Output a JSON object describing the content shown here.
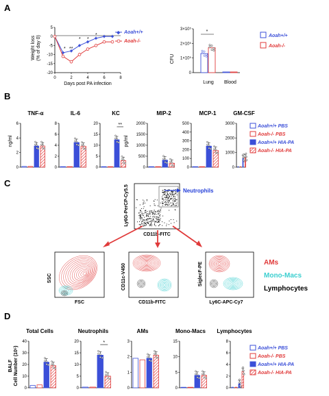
{
  "panels": {
    "A": {
      "letter": "A",
      "weight": {
        "ylabel_line1": "Weight loss",
        "ylabel_line2": "(% of day 0)",
        "xlabel": "Days post PA infection",
        "x_ticks": [
          "0",
          "2",
          "4",
          "6",
          "8"
        ],
        "y_ticks": [
          "5",
          "0",
          "-5",
          "-10",
          "-15",
          "-20"
        ],
        "sig_marks": [
          "*",
          "**",
          "*",
          "*",
          "*"
        ]
      },
      "cfu": {
        "ylabel": "CFU",
        "y_ticks": [
          "3×10⁵",
          "2×10⁵",
          "1×10⁵",
          "0"
        ],
        "categories": [
          "Lung",
          "Blood"
        ],
        "sig": "*"
      },
      "legend": [
        "Aoah+/+",
        "Aoah-/-"
      ]
    },
    "B": {
      "letter": "B",
      "cytokines": [
        "TNF-α",
        "IL-6",
        "KC",
        "MIP-2",
        "MCP-1",
        "GM-CSF"
      ],
      "ylabel_ngml": "ng/ml",
      "ylabel_pgml": "pg/ml",
      "ticks_tnf": [
        "6",
        "4",
        "2",
        "0"
      ],
      "ticks_il6": [
        "8",
        "6",
        "4",
        "2",
        "0"
      ],
      "ticks_kc": [
        "20",
        "15",
        "10",
        "5",
        "0"
      ],
      "ticks_mip2": [
        "2000",
        "1500",
        "1000",
        "500",
        "0"
      ],
      "ticks_mcp1": [
        "500",
        "400",
        "300",
        "200",
        "100",
        "0"
      ],
      "ticks_gmcsf": [
        "3000",
        "2000",
        "1000",
        "0"
      ],
      "kc_sig": "**",
      "legend": [
        "Aoah+/+ PBS",
        "Aoah-/- PBS",
        "Aoah+/+ HIA-PA",
        "Aoah-/- HIA-PA"
      ]
    },
    "C": {
      "letter": "C",
      "top_ylabel": "Ly6G-PerCP-Cy5.5",
      "top_xlabel": "CD11b-FITC",
      "neutrophils": "Neutrophils",
      "p1_y": "SSC",
      "p1_x": "FSC",
      "p2_y": "CD11c-V450",
      "p2_x": "CD11b-FITC",
      "p3_y": "SiglecF-PE",
      "p3_x": "Ly6C-APC-Cy7",
      "populations": [
        "AMs",
        "Mono-Macs",
        "Lymphocytes"
      ]
    },
    "D": {
      "letter": "D",
      "titles": [
        "Total Cells",
        "Neutrophils",
        "AMs",
        "Mono-Macs",
        "Lymphocytes"
      ],
      "ylabel_line1": "BALF",
      "ylabel_line2": "Cell Number (10⁵)",
      "ticks_total": [
        "40",
        "30",
        "20",
        "10",
        "0"
      ],
      "ticks_neut": [
        "20",
        "15",
        "10",
        "5",
        "0"
      ],
      "ticks_ams": [
        "3",
        "2",
        "1",
        "0"
      ],
      "ticks_mono": [
        "15",
        "10",
        "5",
        "0"
      ],
      "ticks_lymph": [
        "8",
        "6",
        "4",
        "2",
        "0"
      ],
      "neut_sig": "*",
      "legend": [
        "Aoah+/+ PBS",
        "Aoah-/- PBS",
        "Aoah+/+ HIA-PA",
        "Aoah-/- HIA-PA"
      ]
    }
  },
  "colors": {
    "wt": "#3b4fd8",
    "ko": "#e03a3a",
    "cyan": "#3ccfd0",
    "grey": "#555555"
  },
  "chart_data": [
    {
      "type": "line",
      "x": [
        0,
        1,
        2,
        3,
        4,
        5,
        6,
        7
      ],
      "series": [
        {
          "name": "Aoah+/+",
          "values": [
            0,
            -9,
            -8,
            -5,
            -3,
            -1,
            0,
            0
          ]
        },
        {
          "name": "Aoah-/-",
          "values": [
            0,
            -11,
            -14,
            -10,
            -7,
            -5,
            -3,
            -3
          ]
        }
      ],
      "xlabel": "Days post PA infection",
      "ylabel": "Weight loss (% of day 0)",
      "xlim": [
        0,
        8
      ],
      "ylim": [
        -20,
        5
      ]
    },
    {
      "type": "bar",
      "categories": [
        "Lung",
        "Blood"
      ],
      "series": [
        {
          "name": "Aoah+/+",
          "values": [
            130000,
            0
          ]
        },
        {
          "name": "Aoah-/-",
          "values": [
            170000,
            0
          ]
        }
      ],
      "ylabel": "CFU",
      "ylim": [
        0,
        300000
      ]
    },
    {
      "type": "bar",
      "categories": [
        "TNF-α",
        "IL-6",
        "KC",
        "MIP-2",
        "MCP-1",
        "GM-CSF"
      ],
      "series": [
        {
          "name": "Aoah+/+ PBS",
          "values": [
            0.1,
            0.1,
            0.2,
            20,
            5,
            20
          ]
        },
        {
          "name": "Aoah-/- PBS",
          "values": [
            0.1,
            0.1,
            0.2,
            20,
            5,
            20
          ]
        },
        {
          "name": "Aoah+/+ HIA-PA",
          "values": [
            2.9,
            4.5,
            12.5,
            320,
            240,
            600
          ]
        },
        {
          "name": "Aoah-/- HIA-PA",
          "values": [
            2.9,
            3.8,
            3,
            180,
            190,
            650
          ]
        }
      ]
    },
    {
      "type": "bar",
      "categories": [
        "Total Cells",
        "Neutrophils",
        "AMs",
        "Mono-Macs",
        "Lymphocytes"
      ],
      "series": [
        {
          "name": "Aoah+/+ PBS",
          "values": [
            2,
            0.3,
            1.9,
            0.1,
            0.1
          ]
        },
        {
          "name": "Aoah-/- PBS",
          "values": [
            2.5,
            0.3,
            1.8,
            0.1,
            0.1
          ]
        },
        {
          "name": "Aoah+/+ HIA-PA",
          "values": [
            22,
            14,
            1.9,
            4,
            0.7
          ]
        },
        {
          "name": "Aoah-/- HIA-PA",
          "values": [
            19,
            5,
            2.1,
            4,
            2.8
          ]
        }
      ],
      "ylabel": "BALF Cell Number (10⁵)"
    }
  ]
}
